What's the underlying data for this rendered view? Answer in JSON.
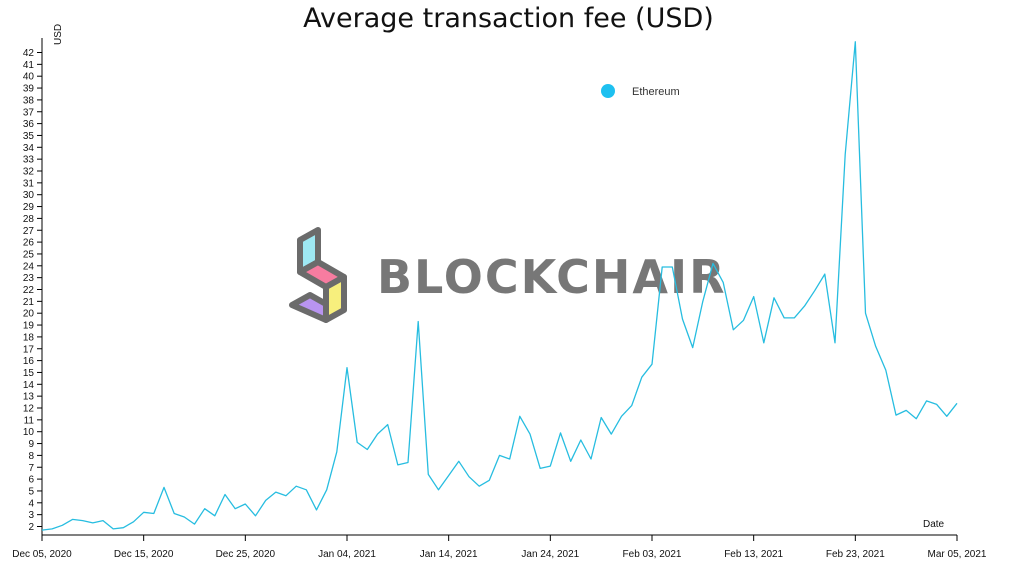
{
  "chart_data": {
    "type": "line",
    "title": "Average transaction fee (USD)",
    "ylabel": "USD",
    "xlabel": "Date",
    "ylim": [
      1.5,
      43
    ],
    "y_ticks": [
      2,
      3,
      4,
      5,
      6,
      7,
      8,
      9,
      10,
      11,
      12,
      13,
      14,
      15,
      16,
      17,
      18,
      19,
      20,
      21,
      22,
      23,
      24,
      25,
      26,
      27,
      28,
      29,
      30,
      31,
      32,
      33,
      34,
      35,
      36,
      37,
      38,
      39,
      40,
      41,
      42
    ],
    "x_ticks": [
      "Dec 05, 2020",
      "Dec 15, 2020",
      "Dec 25, 2020",
      "Jan 04, 2021",
      "Jan 14, 2021",
      "Jan 24, 2021",
      "Feb 03, 2021",
      "Feb 13, 2021",
      "Feb 23, 2021",
      "Mar 05, 2021"
    ],
    "grid": false,
    "legend_position": "top-right",
    "colors": {
      "line": "#27bde0",
      "legend_dot": "#1ec0f0",
      "axis": "#000000"
    },
    "series": [
      {
        "name": "Ethereum",
        "x": [
          "2020-12-05",
          "2020-12-06",
          "2020-12-07",
          "2020-12-08",
          "2020-12-09",
          "2020-12-10",
          "2020-12-11",
          "2020-12-12",
          "2020-12-13",
          "2020-12-14",
          "2020-12-15",
          "2020-12-16",
          "2020-12-17",
          "2020-12-18",
          "2020-12-19",
          "2020-12-20",
          "2020-12-21",
          "2020-12-22",
          "2020-12-23",
          "2020-12-24",
          "2020-12-25",
          "2020-12-26",
          "2020-12-27",
          "2020-12-28",
          "2020-12-29",
          "2020-12-30",
          "2020-12-31",
          "2021-01-01",
          "2021-01-02",
          "2021-01-03",
          "2021-01-04",
          "2021-01-05",
          "2021-01-06",
          "2021-01-07",
          "2021-01-08",
          "2021-01-09",
          "2021-01-10",
          "2021-01-11",
          "2021-01-12",
          "2021-01-13",
          "2021-01-14",
          "2021-01-15",
          "2021-01-16",
          "2021-01-17",
          "2021-01-18",
          "2021-01-19",
          "2021-01-20",
          "2021-01-21",
          "2021-01-22",
          "2021-01-23",
          "2021-01-24",
          "2021-01-25",
          "2021-01-26",
          "2021-01-27",
          "2021-01-28",
          "2021-01-29",
          "2021-01-30",
          "2021-01-31",
          "2021-02-01",
          "2021-02-02",
          "2021-02-03",
          "2021-02-04",
          "2021-02-05",
          "2021-02-06",
          "2021-02-07",
          "2021-02-08",
          "2021-02-09",
          "2021-02-10",
          "2021-02-11",
          "2021-02-12",
          "2021-02-13",
          "2021-02-14",
          "2021-02-15",
          "2021-02-16",
          "2021-02-17",
          "2021-02-18",
          "2021-02-19",
          "2021-02-20",
          "2021-02-21",
          "2021-02-22",
          "2021-02-23",
          "2021-02-24",
          "2021-02-25",
          "2021-02-26",
          "2021-02-27",
          "2021-02-28",
          "2021-03-01",
          "2021-03-02",
          "2021-03-03",
          "2021-03-04",
          "2021-03-05"
        ],
        "values": [
          1.7,
          1.8,
          2.1,
          2.6,
          2.5,
          2.3,
          2.5,
          1.8,
          1.9,
          2.4,
          3.2,
          3.1,
          5.3,
          3.1,
          2.8,
          2.2,
          3.5,
          2.9,
          4.7,
          3.5,
          3.9,
          2.9,
          4.2,
          4.9,
          4.6,
          5.4,
          5.1,
          3.4,
          5.1,
          8.3,
          15.4,
          9.1,
          8.5,
          9.8,
          10.6,
          7.2,
          7.4,
          19.3,
          6.4,
          5.1,
          6.3,
          7.5,
          6.2,
          5.4,
          5.9,
          8.0,
          7.7,
          11.3,
          9.8,
          6.9,
          7.1,
          9.9,
          7.5,
          9.3,
          7.7,
          11.2,
          9.8,
          11.3,
          12.2,
          14.6,
          15.7,
          23.9,
          23.9,
          19.5,
          17.1,
          21.0,
          24.2,
          22.6,
          18.6,
          19.4,
          21.4,
          17.5,
          21.3,
          19.6,
          19.6,
          20.6,
          21.9,
          23.3,
          17.5,
          33.4,
          42.9,
          20.0,
          17.2,
          15.2,
          11.4,
          11.8,
          11.1,
          12.6,
          12.3,
          11.3,
          12.4
        ]
      }
    ]
  },
  "watermark": {
    "text": "BLOCKCHAIR"
  }
}
